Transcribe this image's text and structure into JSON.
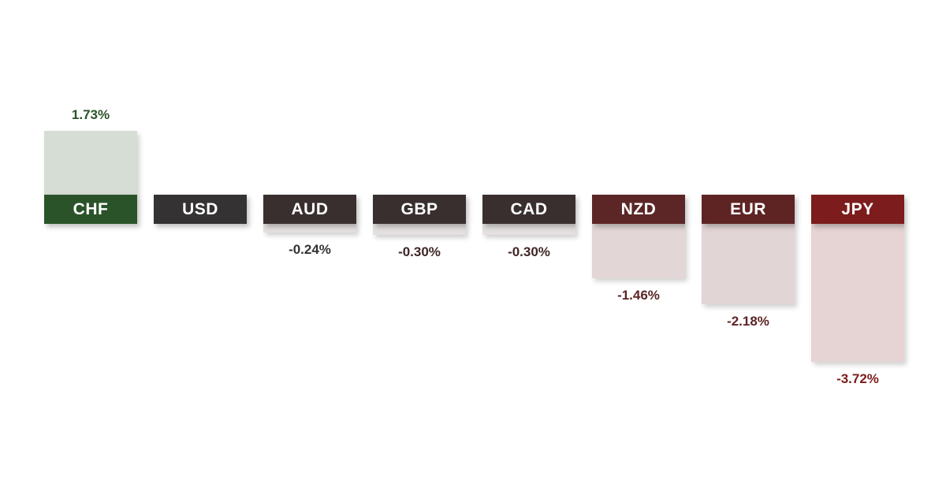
{
  "chart_data": {
    "type": "bar",
    "categories": [
      "CHF",
      "USD",
      "AUD",
      "GBP",
      "CAD",
      "NZD",
      "EUR",
      "JPY"
    ],
    "values": [
      1.73,
      0.0,
      -0.24,
      -0.3,
      -0.3,
      -1.46,
      -2.18,
      -3.72
    ],
    "value_labels": [
      "1.73%",
      "",
      "-0.24%",
      "-0.30%",
      "-0.30%",
      "-1.46%",
      "-2.18%",
      "-3.72%"
    ],
    "title": "",
    "xlabel": "",
    "ylabel": "",
    "unit": "%",
    "grid": false,
    "legend": "none",
    "colors": {
      "label_boxes": [
        "#2b5329",
        "#343232",
        "#3a2f2f",
        "#3a2f2f",
        "#3a2f2f",
        "#5c2626",
        "#5e2424",
        "#7c1c1c"
      ],
      "bars": [
        "#d5ddd5",
        "#e4e0e0",
        "#e4e0e0",
        "#e4e0e0",
        "#e4e0e0",
        "#e2d6d6",
        "#e2d5d5",
        "#e6d4d4"
      ],
      "value_text": [
        "#2b5329",
        "#343232",
        "#343232",
        "#3f2626",
        "#3f2626",
        "#5c2626",
        "#5e2424",
        "#7c1c1c"
      ]
    }
  }
}
